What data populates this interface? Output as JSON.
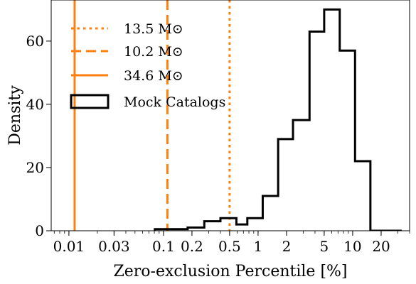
{
  "chart_data": {
    "type": "histogram",
    "xlabel": "Zero-exclusion Percentile [%]",
    "ylabel": "Density",
    "xscale": "log",
    "xlim": [
      0.0065,
      40
    ],
    "ylim": [
      0,
      73
    ],
    "xticks": [
      {
        "value": 0.01,
        "label": "0.01"
      },
      {
        "value": 0.03,
        "label": "0.03"
      },
      {
        "value": 0.1,
        "label": "0.1"
      },
      {
        "value": 0.2,
        "label": "0.2"
      },
      {
        "value": 0.5,
        "label": "0.5"
      },
      {
        "value": 1,
        "label": "1"
      },
      {
        "value": 2,
        "label": "2"
      },
      {
        "value": 5,
        "label": "5"
      },
      {
        "value": 10,
        "label": "10"
      },
      {
        "value": 20,
        "label": "20"
      }
    ],
    "yticks": [
      {
        "value": 0,
        "label": "0"
      },
      {
        "value": 20,
        "label": "20"
      },
      {
        "value": 40,
        "label": "40"
      },
      {
        "value": 60,
        "label": "60"
      }
    ],
    "histogram": {
      "name": "Mock Catalogs",
      "color": "#000000",
      "bin_edges": [
        0.081,
        0.12,
        0.18,
        0.27,
        0.4,
        0.59,
        0.77,
        1.12,
        1.63,
        2.34,
        3.5,
        5.0,
        7.3,
        10.6,
        15.4,
        23.7,
        33.0
      ],
      "values": [
        0.5,
        0.5,
        1,
        3,
        4,
        2,
        4,
        11,
        29,
        35,
        63,
        70,
        57,
        22,
        0,
        0
      ]
    },
    "vlines": [
      {
        "name": "13.5 M⊙",
        "x": 0.5,
        "style": "dotted",
        "color": "#ff7f0e"
      },
      {
        "name": "10.2 M⊙",
        "x": 0.11,
        "style": "dashed",
        "color": "#ff7f0e"
      },
      {
        "name": "34.6 M⊙",
        "x": 0.0115,
        "style": "solid",
        "color": "#ff7f0e"
      }
    ],
    "legend": {
      "position": "top-left",
      "entries": [
        {
          "label": "13.5 M⊙",
          "style": "dotted",
          "color": "#ff7f0e"
        },
        {
          "label": "10.2 M⊙",
          "style": "dashed",
          "color": "#ff7f0e"
        },
        {
          "label": "34.6 M⊙",
          "style": "solid",
          "color": "#ff7f0e"
        },
        {
          "label": "Mock Catalogs",
          "style": "step-box",
          "color": "#000000"
        }
      ]
    },
    "grid": false
  }
}
